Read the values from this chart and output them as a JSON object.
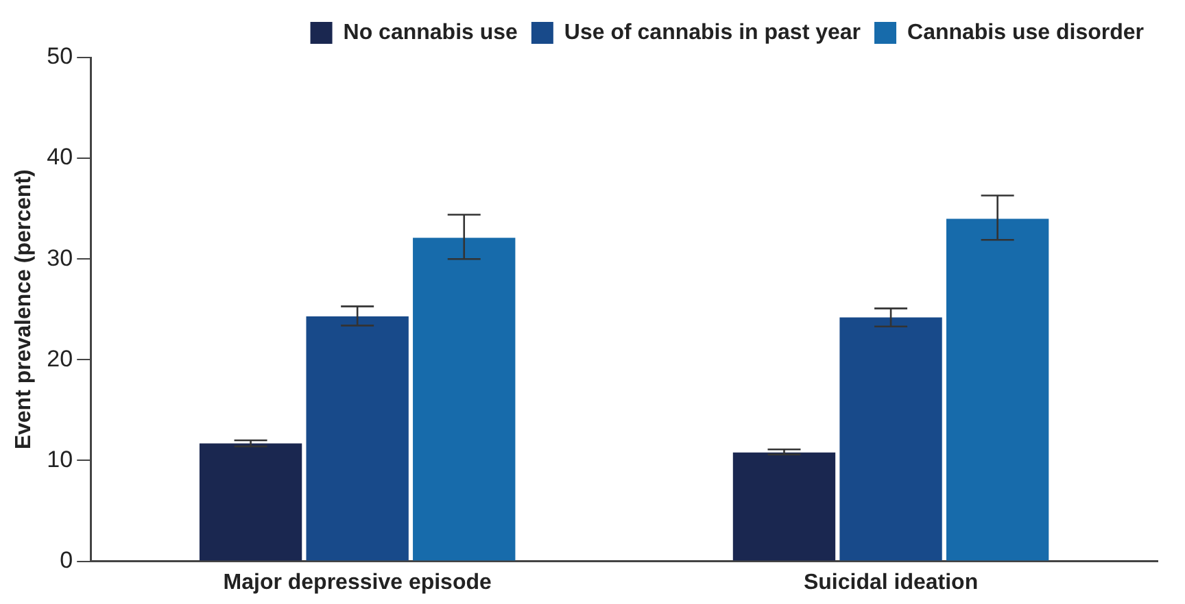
{
  "chart_data": {
    "type": "bar",
    "ylabel": "Event prevalence (percent)",
    "categories": [
      "Major depressive episode",
      "Suicidal ideation"
    ],
    "series": [
      {
        "name": "No cannabis use",
        "color": "#1a2750",
        "values": [
          11.7,
          10.8
        ],
        "errors": [
          [
            11.4,
            12.0
          ],
          [
            10.6,
            11.1
          ]
        ]
      },
      {
        "name": "Use of cannabis in past year",
        "color": "#184a8a",
        "values": [
          24.3,
          24.2
        ],
        "errors": [
          [
            23.4,
            25.3
          ],
          [
            23.3,
            25.1
          ]
        ]
      },
      {
        "name": "Cannabis use disorder",
        "color": "#176bab",
        "values": [
          32.1,
          34.0
        ],
        "errors": [
          [
            30.0,
            34.4
          ],
          [
            31.9,
            36.3
          ]
        ]
      }
    ],
    "ylim": [
      0,
      50
    ],
    "yticks": [
      0,
      10,
      20,
      30,
      40,
      50
    ],
    "grid": false,
    "legend": "top right"
  }
}
